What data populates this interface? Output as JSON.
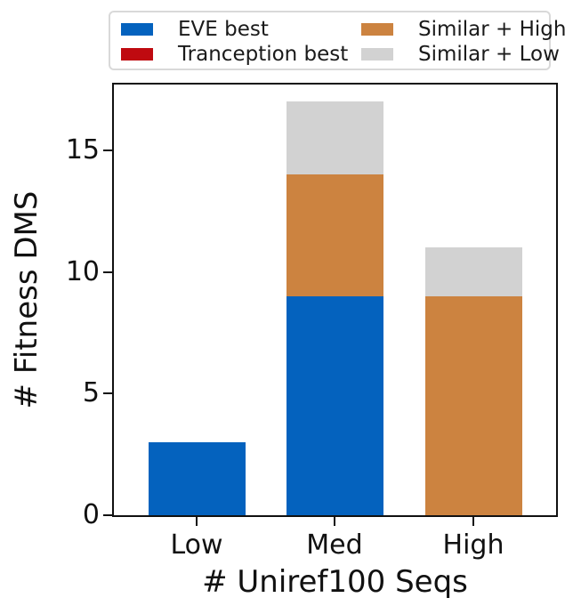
{
  "legend": {
    "items": [
      {
        "label": "EVE best",
        "color": "#0462be"
      },
      {
        "label": "Tranception best",
        "color": "#bf0a10"
      },
      {
        "label": "Similar + High",
        "color": "#cc8340"
      },
      {
        "label": "Similar + Low",
        "color": "#d2d2d2"
      }
    ]
  },
  "chart_data": {
    "type": "bar",
    "stacked": true,
    "title": "",
    "xlabel": "# Uniref100 Seqs",
    "ylabel": "# Fitness DMS",
    "categories": [
      "Low",
      "Med",
      "High"
    ],
    "series": [
      {
        "name": "EVE best",
        "color": "#0462be",
        "values": [
          3,
          9,
          0
        ]
      },
      {
        "name": "Tranception best",
        "color": "#bf0a10",
        "values": [
          0,
          0,
          0
        ]
      },
      {
        "name": "Similar + High",
        "color": "#cc8340",
        "values": [
          0,
          5,
          9
        ]
      },
      {
        "name": "Similar + Low",
        "color": "#d2d2d2",
        "values": [
          0,
          3,
          2
        ]
      }
    ],
    "totals": [
      3,
      17,
      11
    ],
    "yticks": [
      0,
      5,
      10,
      15
    ],
    "ylim": [
      0,
      17.7
    ],
    "grid": false,
    "legend_position": "top-outside"
  }
}
